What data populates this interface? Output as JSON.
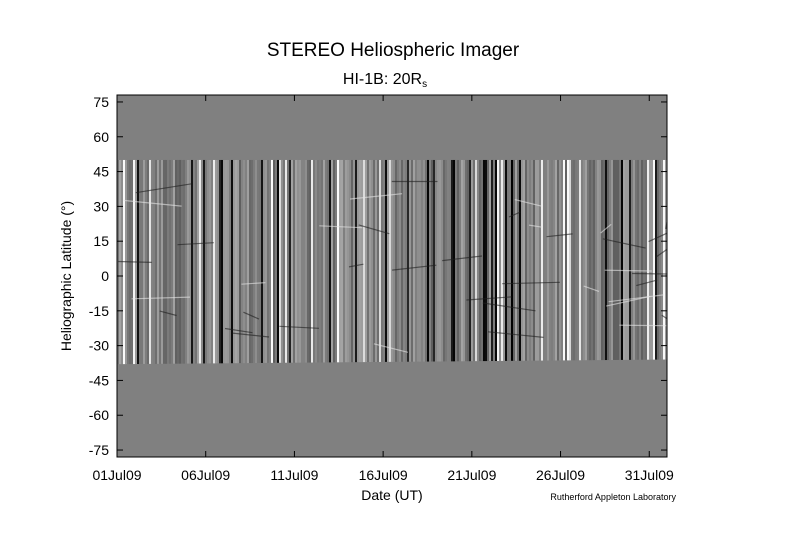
{
  "chart_data": {
    "type": "heatmap",
    "title": "STEREO Heliospheric Imager",
    "subtitle_main": "HI-1B: 20R",
    "subtitle_sub": "s",
    "xlabel": "Date (UT)",
    "ylabel": "Heliographic Latitude (°)",
    "credit": "Rutherford Appleton Laboratory",
    "x_ticks": [
      {
        "label": "01Jul09",
        "day": 1
      },
      {
        "label": "06Jul09",
        "day": 6
      },
      {
        "label": "11Jul09",
        "day": 11
      },
      {
        "label": "16Jul09",
        "day": 16
      },
      {
        "label": "21Jul09",
        "day": 21
      },
      {
        "label": "26Jul09",
        "day": 26
      },
      {
        "label": "31Jul09",
        "day": 31
      }
    ],
    "xlim": [
      1,
      32
    ],
    "y_ticks": [
      75,
      60,
      45,
      30,
      15,
      0,
      -15,
      -30,
      -45,
      -60,
      -75
    ],
    "ylim": [
      -78,
      78
    ],
    "data_band": {
      "lat_max": 50,
      "lat_min_start": -38,
      "lat_min_end": -36
    },
    "colors": {
      "background": "#808080",
      "dark": "#000000",
      "light": "#ffffff"
    }
  }
}
